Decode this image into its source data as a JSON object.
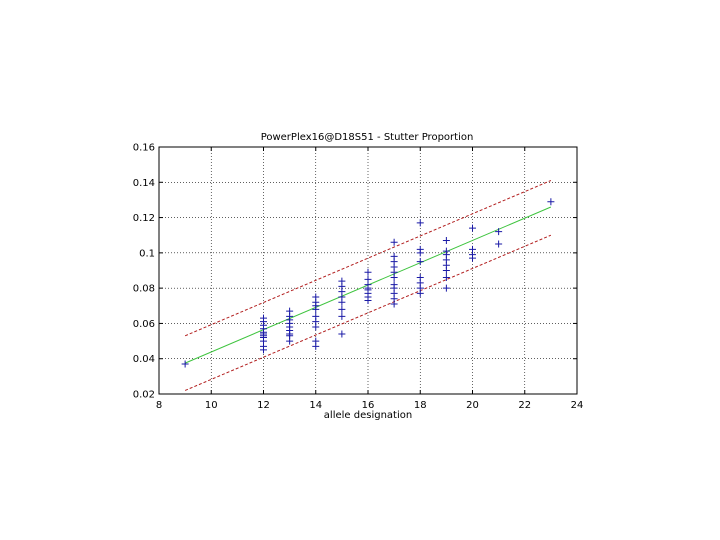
{
  "chart_data": {
    "type": "scatter",
    "title": "PowerPlex16@D18S51 - Stutter Proportion",
    "xlabel": "allele designation",
    "ylabel": "",
    "xlim": [
      8,
      24
    ],
    "ylim": [
      0.02,
      0.16
    ],
    "xticks": [
      "8",
      "10",
      "12",
      "14",
      "16",
      "18",
      "20",
      "22",
      "24"
    ],
    "yticks": [
      "0.02",
      "0.04",
      "0.06",
      "0.08",
      "0.1",
      "0.12",
      "0.14",
      "0.16"
    ],
    "grid": true,
    "colors": {
      "points": "#1a1aa6",
      "fit": "#3ec43e",
      "bounds": "#b21e1e"
    },
    "series": [
      {
        "kind": "points",
        "marker": "+",
        "x": [
          9,
          12,
          12,
          12,
          12,
          12,
          12,
          12,
          12,
          12,
          12,
          12,
          13,
          13,
          13,
          13,
          13,
          13,
          13,
          13,
          13,
          14,
          14,
          14,
          14,
          14,
          14,
          14,
          14,
          14,
          15,
          15,
          15,
          15,
          15,
          15,
          15,
          15,
          16,
          16,
          16,
          16,
          16,
          16,
          16,
          16,
          17,
          17,
          17,
          17,
          17,
          17,
          17,
          17,
          17,
          17,
          17,
          18,
          18,
          18,
          18,
          18,
          18,
          18,
          18,
          19,
          19,
          19,
          19,
          19,
          19,
          19,
          19,
          20,
          20,
          20,
          20,
          21,
          21,
          23
        ],
        "y": [
          0.037,
          0.063,
          0.061,
          0.059,
          0.057,
          0.055,
          0.054,
          0.053,
          0.052,
          0.05,
          0.047,
          0.045,
          0.067,
          0.064,
          0.062,
          0.06,
          0.058,
          0.056,
          0.054,
          0.053,
          0.05,
          0.075,
          0.072,
          0.07,
          0.068,
          0.064,
          0.061,
          0.058,
          0.05,
          0.047,
          0.084,
          0.081,
          0.078,
          0.075,
          0.072,
          0.068,
          0.064,
          0.054,
          0.089,
          0.085,
          0.082,
          0.08,
          0.079,
          0.077,
          0.075,
          0.073,
          0.106,
          0.098,
          0.095,
          0.092,
          0.089,
          0.086,
          0.082,
          0.08,
          0.077,
          0.074,
          0.071,
          0.117,
          0.102,
          0.1,
          0.095,
          0.086,
          0.083,
          0.08,
          0.077,
          0.107,
          0.101,
          0.099,
          0.096,
          0.093,
          0.09,
          0.086,
          0.08,
          0.114,
          0.102,
          0.099,
          0.097,
          0.112,
          0.105,
          0.129
        ]
      },
      {
        "kind": "line",
        "role": "fit",
        "x": [
          9,
          23
        ],
        "y": [
          0.0375,
          0.126
        ]
      },
      {
        "kind": "line",
        "role": "upper",
        "dashed": true,
        "x": [
          9,
          23
        ],
        "y": [
          0.053,
          0.141
        ]
      },
      {
        "kind": "line",
        "role": "lower",
        "dashed": true,
        "x": [
          9,
          23
        ],
        "y": [
          0.022,
          0.11
        ]
      }
    ]
  }
}
